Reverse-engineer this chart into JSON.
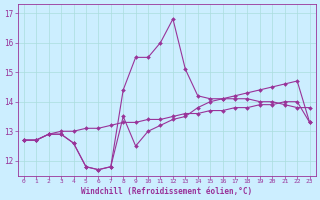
{
  "title": "",
  "xlabel": "Windchill (Refroidissement éolien,°C)",
  "ylabel": "",
  "bg_color": "#cceeff",
  "grid_color": "#aadddd",
  "line_color": "#993399",
  "xlim": [
    -0.5,
    23.5
  ],
  "ylim": [
    11.5,
    17.3
  ],
  "yticks": [
    12,
    13,
    14,
    15,
    16,
    17
  ],
  "xticks": [
    0,
    1,
    2,
    3,
    4,
    5,
    6,
    7,
    8,
    9,
    10,
    11,
    12,
    13,
    14,
    15,
    16,
    17,
    18,
    19,
    20,
    21,
    22,
    23
  ],
  "series": {
    "line1_x": [
      0,
      1,
      2,
      3,
      4,
      5,
      6,
      7,
      8,
      9,
      10,
      11,
      12,
      13,
      14,
      15,
      16,
      17,
      18,
      19,
      20,
      21,
      22,
      23
    ],
    "line1_y": [
      12.7,
      12.7,
      12.9,
      12.9,
      12.6,
      11.8,
      11.7,
      11.8,
      14.4,
      15.5,
      15.5,
      16.0,
      16.8,
      15.1,
      14.2,
      14.1,
      14.1,
      14.1,
      14.1,
      14.0,
      14.0,
      13.9,
      13.8,
      13.8
    ],
    "line2_x": [
      0,
      1,
      2,
      3,
      4,
      5,
      6,
      7,
      8,
      9,
      10,
      11,
      12,
      13,
      14,
      15,
      16,
      17,
      18,
      19,
      20,
      21,
      22,
      23
    ],
    "line2_y": [
      12.7,
      12.7,
      12.9,
      12.9,
      12.6,
      11.8,
      11.7,
      11.8,
      13.5,
      12.5,
      13.0,
      13.2,
      13.4,
      13.5,
      13.8,
      14.0,
      14.1,
      14.2,
      14.3,
      14.4,
      14.5,
      14.6,
      14.7,
      13.3
    ],
    "line3_x": [
      0,
      1,
      2,
      3,
      4,
      5,
      6,
      7,
      8,
      9,
      10,
      11,
      12,
      13,
      14,
      15,
      16,
      17,
      18,
      19,
      20,
      21,
      22,
      23
    ],
    "line3_y": [
      12.7,
      12.7,
      12.9,
      13.0,
      13.0,
      13.1,
      13.1,
      13.2,
      13.3,
      13.3,
      13.4,
      13.4,
      13.5,
      13.6,
      13.6,
      13.7,
      13.7,
      13.8,
      13.8,
      13.9,
      13.9,
      14.0,
      14.0,
      13.3
    ]
  }
}
